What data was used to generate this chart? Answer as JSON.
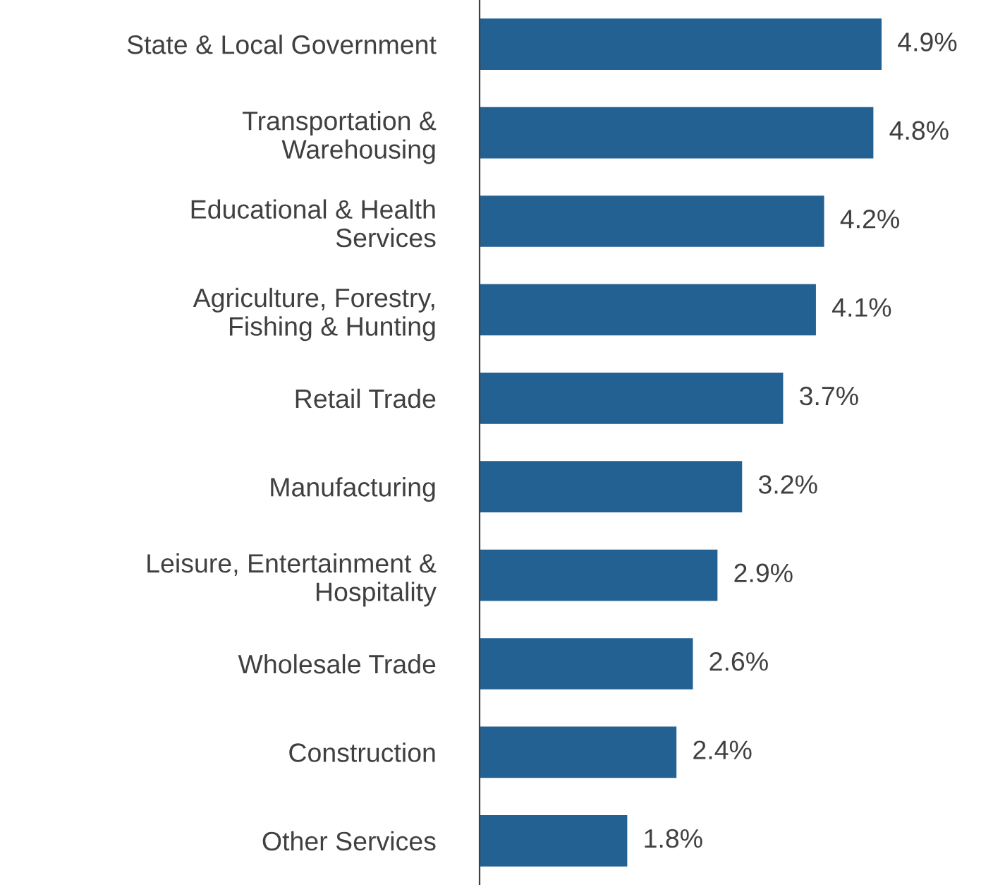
{
  "chart_data": {
    "type": "bar",
    "orientation": "horizontal",
    "categories": [
      "State & Local Government",
      "Transportation &\nWarehousing",
      "Educational & Health\nServices",
      "Agriculture, Forestry,\nFishing & Hunting",
      "Retail Trade",
      "Manufacturing",
      "Leisure, Entertainment &\nHospitality",
      "Wholesale Trade",
      "Construction",
      "Other Services"
    ],
    "values": [
      4.9,
      4.8,
      4.2,
      4.1,
      3.7,
      3.2,
      2.9,
      2.6,
      2.4,
      1.8
    ],
    "value_labels": [
      "4.9%",
      "4.8%",
      "4.2%",
      "4.1%",
      "3.7%",
      "3.2%",
      "2.9%",
      "2.6%",
      "2.4%",
      "1.8%"
    ],
    "color": "#236192",
    "tick_labels": "y",
    "grid": false,
    "legend": false
  }
}
